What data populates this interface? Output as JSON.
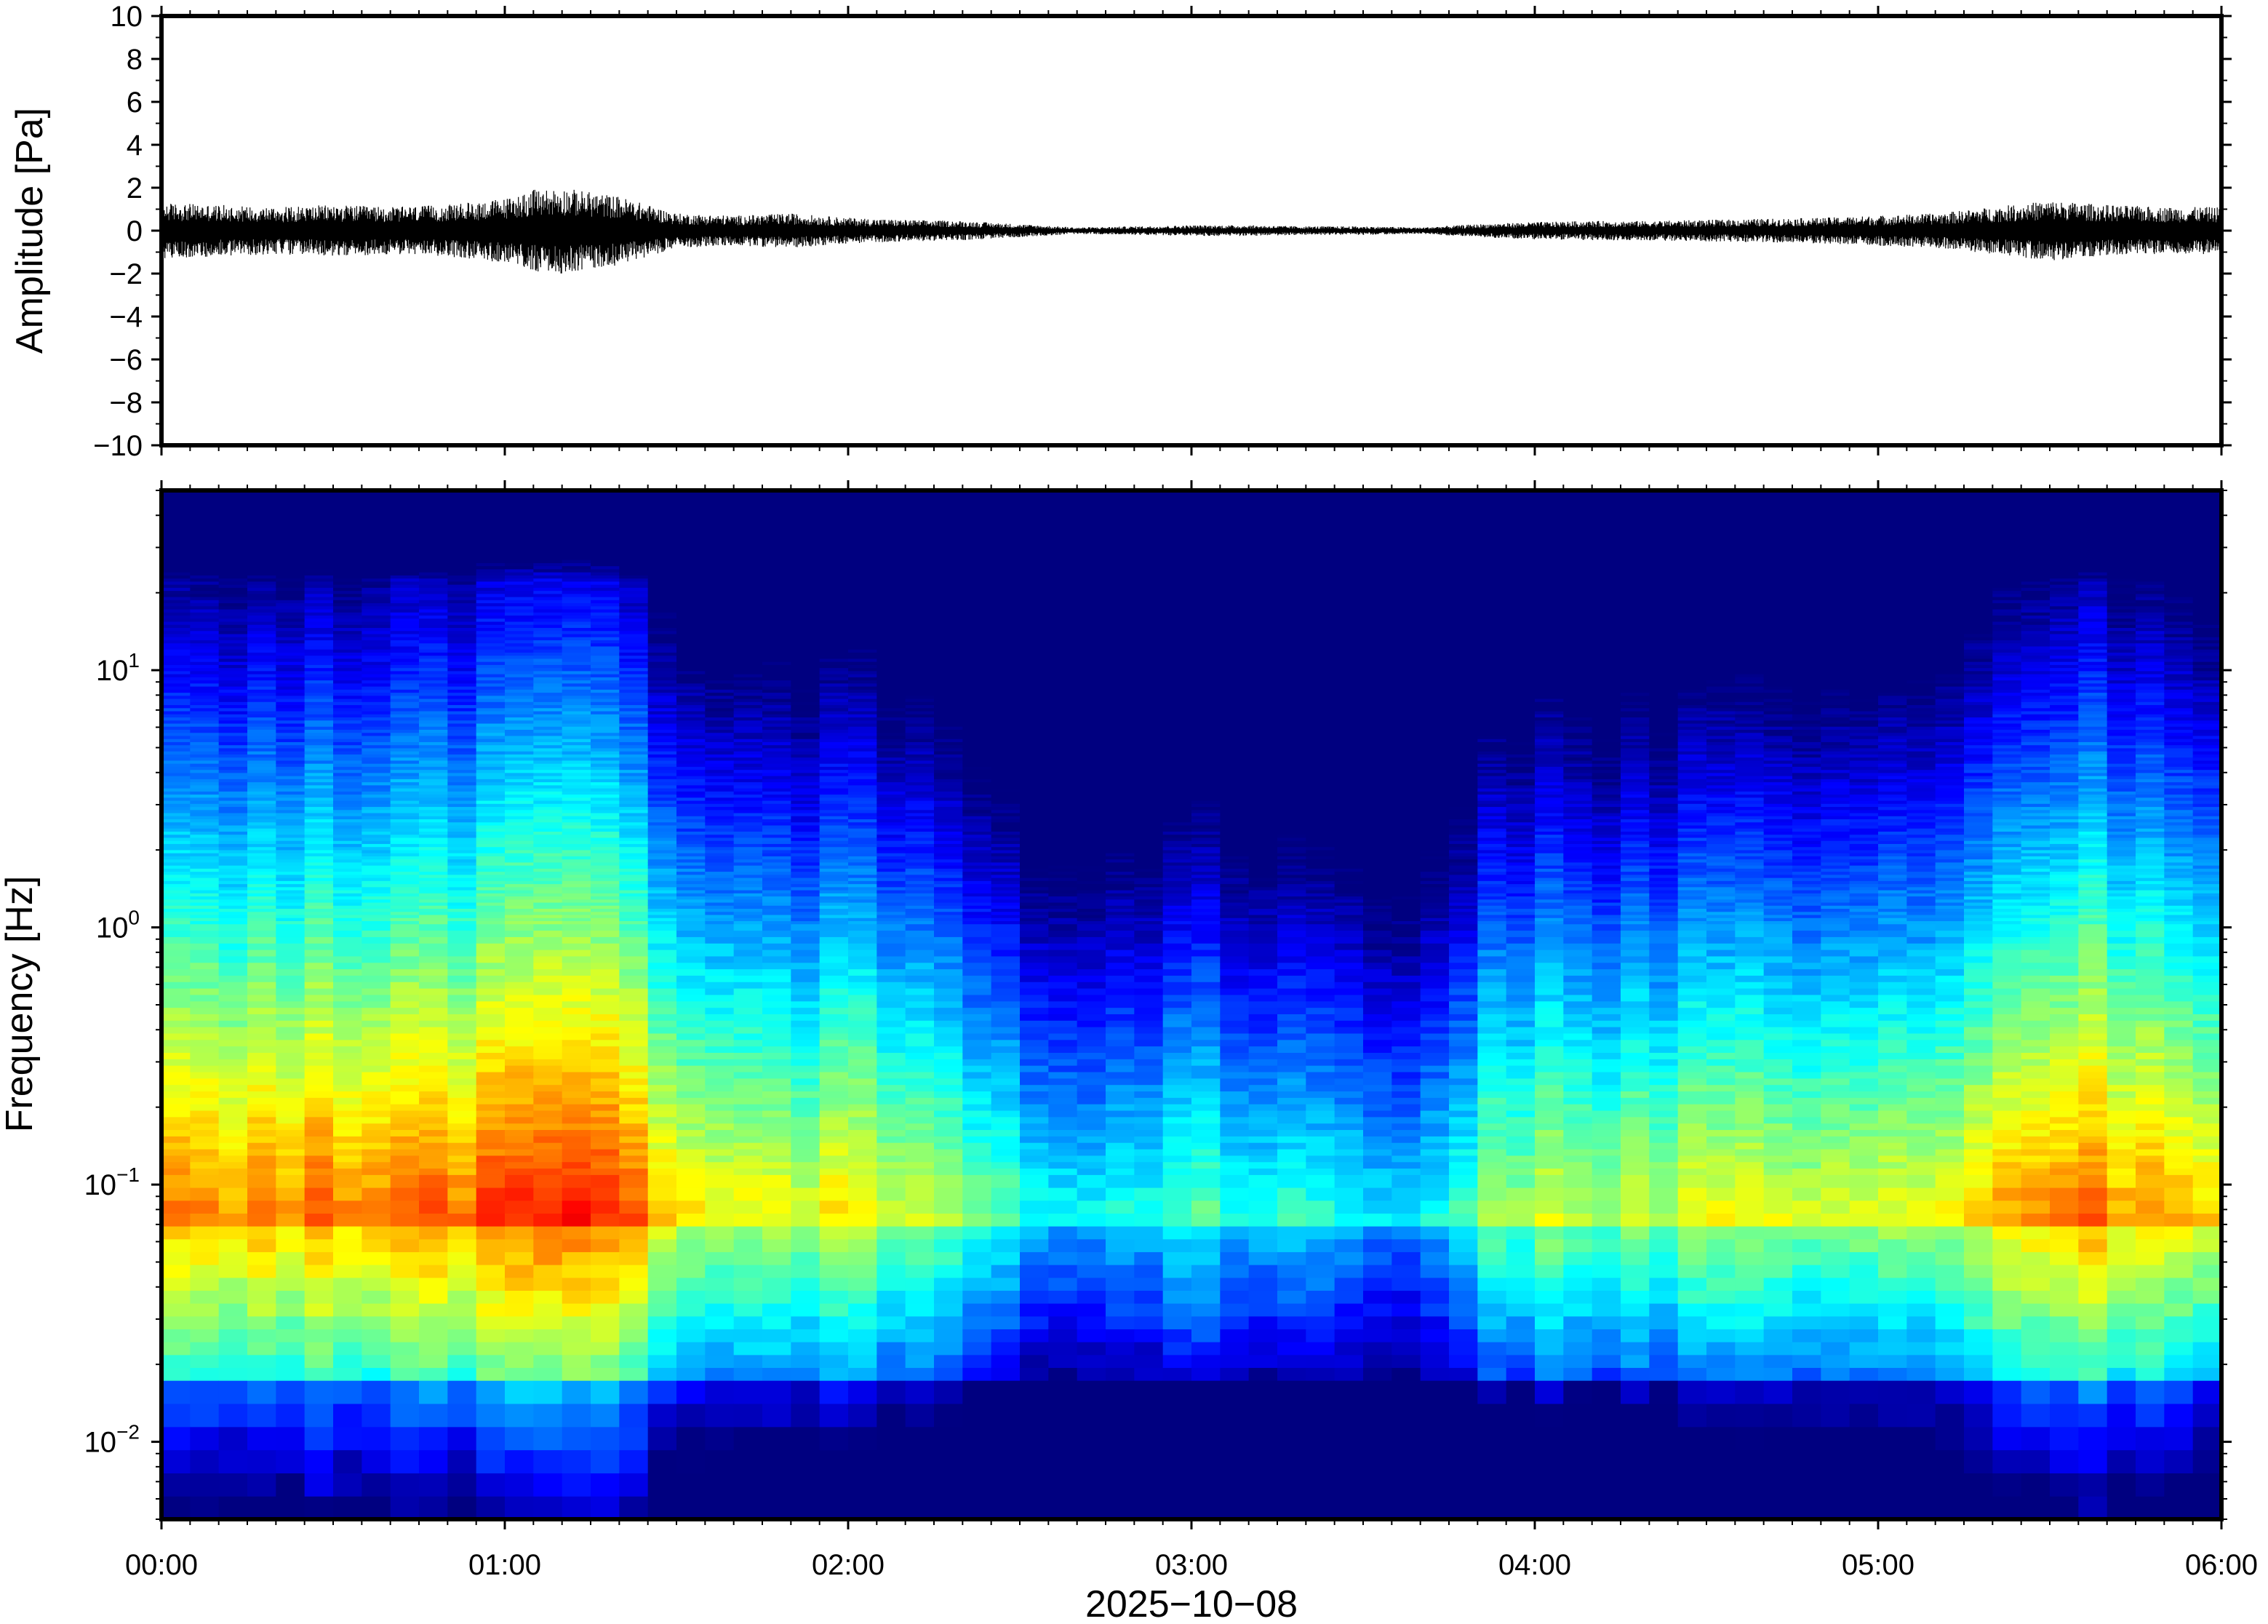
{
  "chart_data": [
    {
      "type": "line",
      "ylabel": "Amplitude [Pa]",
      "ylim": [
        -10,
        10
      ],
      "yticks": [
        "10",
        "8",
        "6",
        "4",
        "2",
        "0",
        "−2",
        "−4",
        "−6",
        "−8",
        "−10"
      ],
      "ytick_values": [
        10,
        8,
        6,
        4,
        2,
        0,
        -2,
        -4,
        -6,
        -8,
        -10
      ],
      "xlim": [
        "00:00",
        "06:00"
      ],
      "line_color": "#000000",
      "series": [
        {
          "x": [
            "00:00",
            "00:10",
            "00:20",
            "00:30",
            "00:40",
            "00:50",
            "01:00",
            "01:05",
            "01:10",
            "01:15",
            "01:20",
            "01:30",
            "01:40",
            "01:50",
            "02:00",
            "02:10",
            "02:20",
            "02:30",
            "02:40",
            "02:50",
            "03:00",
            "03:10",
            "03:20",
            "03:30",
            "03:40",
            "03:50",
            "04:00",
            "04:10",
            "04:20",
            "04:30",
            "04:40",
            "04:50",
            "05:00",
            "05:10",
            "05:20",
            "05:30",
            "05:40",
            "05:50",
            "06:00"
          ],
          "envelope": [
            1.3,
            1.2,
            1.1,
            1.2,
            1.1,
            1.2,
            1.5,
            1.9,
            2.0,
            1.8,
            1.6,
            0.8,
            0.7,
            0.8,
            0.6,
            0.5,
            0.45,
            0.3,
            0.15,
            0.2,
            0.25,
            0.25,
            0.2,
            0.2,
            0.15,
            0.3,
            0.4,
            0.45,
            0.45,
            0.5,
            0.55,
            0.6,
            0.7,
            0.8,
            1.1,
            1.4,
            1.2,
            1.1,
            1.1
          ]
        }
      ]
    },
    {
      "type": "heatmap",
      "xlabel": "2025−10−08",
      "ylabel": "Frequency [Hz]",
      "xticks": [
        "00:00",
        "01:00",
        "02:00",
        "03:00",
        "04:00",
        "05:00",
        "06:00"
      ],
      "xlim": [
        "00:00",
        "06:00"
      ],
      "y_scale": "log",
      "ylim": [
        0.005,
        50
      ],
      "yticks": [
        {
          "value": 10,
          "base": "10",
          "exp": "1"
        },
        {
          "value": 1,
          "base": "10",
          "exp": "0"
        },
        {
          "value": 0.1,
          "base": "10",
          "exp": "−1"
        },
        {
          "value": 0.01,
          "base": "10",
          "exp": "−2"
        }
      ],
      "colormap": "jet",
      "power_profile": {
        "time": [
          "00:00",
          "00:30",
          "01:00",
          "01:20",
          "01:25",
          "01:40",
          "02:00",
          "02:15",
          "02:25",
          "02:35",
          "03:00",
          "03:15",
          "03:30",
          "03:40",
          "03:45",
          "03:50",
          "04:00",
          "04:30",
          "05:00",
          "05:20",
          "05:30",
          "05:45",
          "06:00"
        ],
        "level": [
          0.7,
          0.72,
          0.76,
          0.8,
          0.64,
          0.6,
          0.57,
          0.55,
          0.47,
          0.36,
          0.4,
          0.38,
          0.34,
          0.3,
          0.38,
          0.5,
          0.52,
          0.54,
          0.57,
          0.64,
          0.72,
          0.7,
          0.66
        ]
      }
    }
  ]
}
